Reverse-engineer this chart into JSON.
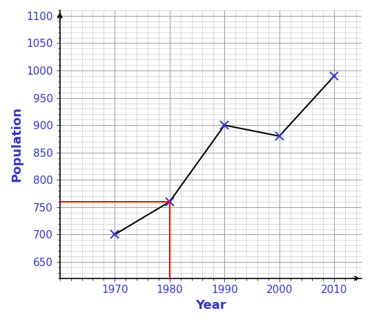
{
  "x": [
    1970,
    1980,
    1990,
    2000,
    2010
  ],
  "y": [
    700,
    760,
    900,
    880,
    990
  ],
  "line_color": "black",
  "marker": "x",
  "marker_color": "#3333cc",
  "marker_size": 8,
  "marker_linewidth": 1.5,
  "red_line_x": [
    1960,
    1980
  ],
  "red_line_y": [
    760,
    760
  ],
  "red_vline_x": [
    1980,
    1980
  ],
  "red_vline_y": [
    760,
    620
  ],
  "xlabel": "Year",
  "ylabel": "Population",
  "xlabel_color": "#3333cc",
  "ylabel_color": "#3333cc",
  "tick_color": "#3333cc",
  "axis_color": "#000000",
  "xlim": [
    1960,
    2015
  ],
  "ylim": [
    620,
    1110
  ],
  "xticks": [
    1970,
    1980,
    1990,
    2000,
    2010
  ],
  "yticks": [
    650,
    700,
    750,
    800,
    850,
    900,
    950,
    1000,
    1050,
    1100
  ],
  "grid_color": "#bbbbbb",
  "grid_major_color": "#999999",
  "background_color": "#ffffff",
  "title_fontsize": 12,
  "label_fontsize": 13,
  "tick_fontsize": 11
}
